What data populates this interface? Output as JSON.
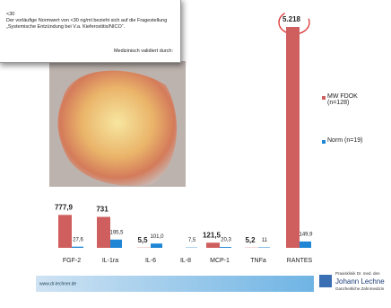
{
  "popup": {
    "threshold": "<30",
    "note": "Der vorläufige Normwert von <30 ng/ml bezieht sich auf die Fragestellung „Systemische Entzündung bei V.a. Kieferostitis/NICO“.",
    "validated": "Medizinisch validiert durch:"
  },
  "chart_data": {
    "type": "bar",
    "categories": [
      "FGF-2",
      "IL-1ra",
      "IL-6",
      "IL-8",
      "MCP-1",
      "TNFa",
      "RANTES"
    ],
    "series": [
      {
        "name": "MW FDOK (n=128)",
        "color": "#cf5f5f",
        "values": [
          777.9,
          731,
          5.5,
          null,
          121.5,
          5.2,
          5218
        ],
        "value_labels": [
          "777,9",
          "731",
          "5,5",
          null,
          "121,5",
          "5,2",
          "5.218"
        ]
      },
      {
        "name": "Norm (n=19)",
        "color": "#1f86d6",
        "values": [
          27.6,
          195.5,
          101.0,
          7.5,
          20.3,
          11,
          149.9
        ],
        "value_labels": [
          "27,6",
          "195,5",
          "101,0",
          "7,5",
          "20,3",
          "11",
          "149,9"
        ]
      }
    ]
  },
  "footer": {
    "url": "www.dr-lechner.de",
    "clinic": "Praxisklinik Dr. med. den",
    "name": "Johann Lechne",
    "subtitle": "Ganzheitliche Zahnmedizin"
  }
}
